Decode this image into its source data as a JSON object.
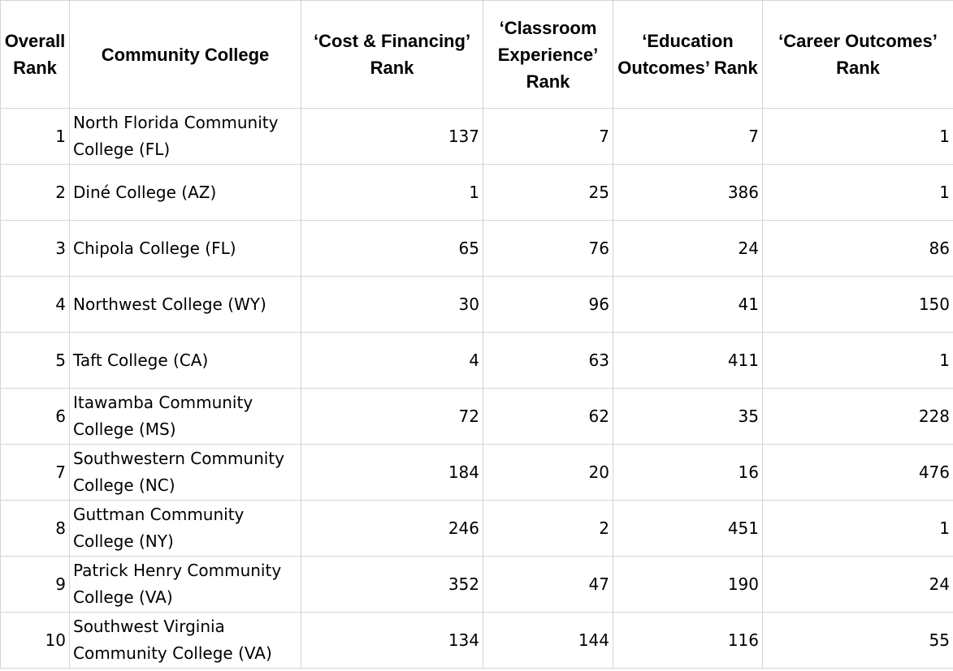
{
  "table": {
    "headers": [
      "Overall Rank",
      "Community College",
      "‘Cost & Financing’ Rank",
      "‘Classroom Experience’ Rank",
      "‘Education Outcomes’ Rank",
      "‘Career Outcomes’ Rank"
    ],
    "rows": [
      [
        "1",
        "North Florida Community College (FL)",
        "137",
        "7",
        "7",
        "1"
      ],
      [
        "2",
        "Diné College (AZ)",
        "1",
        "25",
        "386",
        "1"
      ],
      [
        "3",
        "Chipola College (FL)",
        "65",
        "76",
        "24",
        "86"
      ],
      [
        "4",
        "Northwest College (WY)",
        "30",
        "96",
        "41",
        "150"
      ],
      [
        "5",
        "Taft College (CA)",
        "4",
        "63",
        "411",
        "1"
      ],
      [
        "6",
        "Itawamba Community College (MS)",
        "72",
        "62",
        "35",
        "228"
      ],
      [
        "7",
        "Southwestern Community College (NC)",
        "184",
        "20",
        "16",
        "476"
      ],
      [
        "8",
        "Guttman Community College (NY)",
        "246",
        "2",
        "451",
        "1"
      ],
      [
        "9",
        "Patrick Henry Community College (VA)",
        "352",
        "47",
        "190",
        "24"
      ],
      [
        "10",
        "Southwest Virginia Community College (VA)",
        "134",
        "144",
        "116",
        "55"
      ]
    ]
  }
}
